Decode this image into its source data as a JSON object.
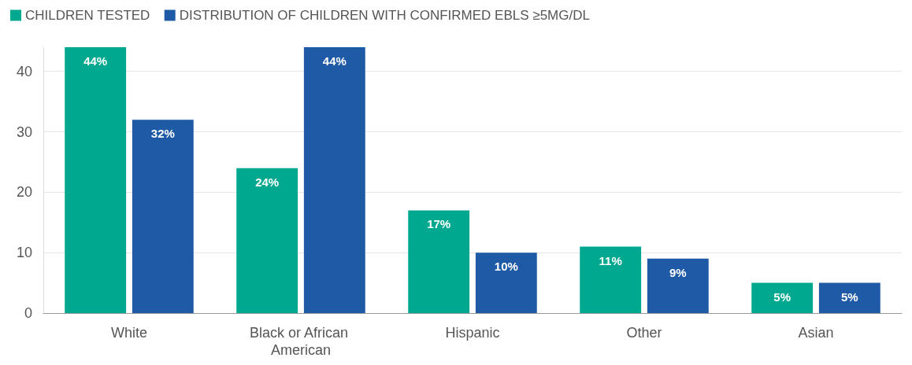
{
  "chart_data": {
    "type": "bar",
    "categories": [
      "White",
      "Black or African American",
      "Hispanic",
      "Other",
      "Asian"
    ],
    "series": [
      {
        "name": "CHILDREN TESTED",
        "color": "#00a88f",
        "values": [
          44,
          24,
          17,
          11,
          5
        ],
        "value_labels": [
          "44%",
          "24%",
          "17%",
          "11%",
          "5%"
        ]
      },
      {
        "name": "DISTRIBUTION OF CHILDREN WITH CONFIRMED EBLS ≥5MG/DL",
        "color": "#1f5aa6",
        "values": [
          32,
          44,
          10,
          9,
          5
        ],
        "value_labels": [
          "32%",
          "44%",
          "10%",
          "9%",
          "5%"
        ]
      }
    ],
    "ylim": [
      0,
      44
    ],
    "yticks": [
      0,
      10,
      20,
      30,
      40
    ],
    "grid": "y",
    "legend": "top left"
  }
}
